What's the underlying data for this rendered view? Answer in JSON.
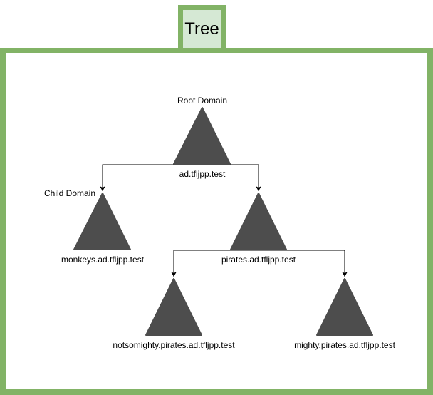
{
  "tab": {
    "title": "Tree"
  },
  "colors": {
    "frame": "#82b366",
    "tab_fill": "#d5e8d4",
    "node_fill": "#4d4d4d",
    "edge": "#000000"
  },
  "diagram": {
    "nodes": [
      {
        "id": "root",
        "label": "ad.tfljpp.test",
        "caption": "Root Domain"
      },
      {
        "id": "monkeys",
        "label": "monkeys.ad.tfljpp.test",
        "caption": "Child Domain"
      },
      {
        "id": "pirates",
        "label": "pirates.ad.tfljpp.test",
        "caption": ""
      },
      {
        "id": "notsomighty",
        "label": "notsomighty.pirates.ad.tfljpp.test",
        "caption": ""
      },
      {
        "id": "mighty",
        "label": "mighty.pirates.ad.tfljpp.test",
        "caption": ""
      }
    ],
    "edges": [
      {
        "from": "root",
        "to": "monkeys"
      },
      {
        "from": "root",
        "to": "pirates"
      },
      {
        "from": "pirates",
        "to": "notsomighty"
      },
      {
        "from": "pirates",
        "to": "mighty"
      }
    ]
  }
}
